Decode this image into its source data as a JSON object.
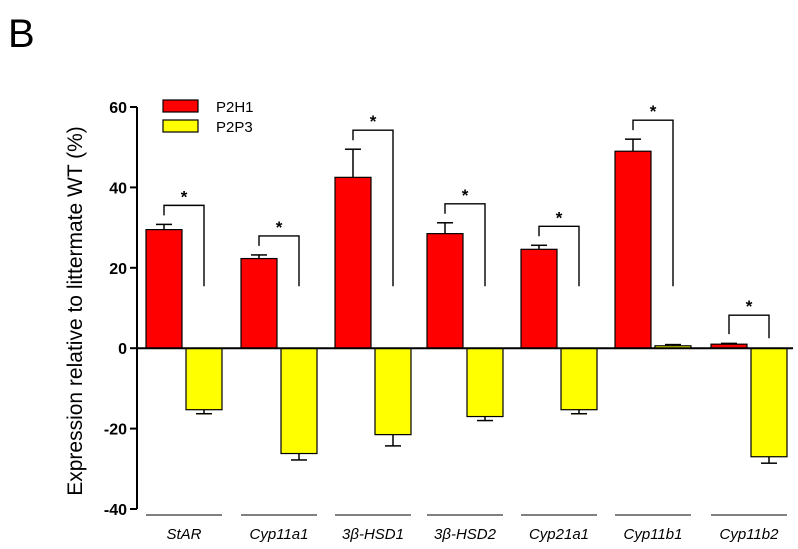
{
  "panel_letter": "B",
  "colors": {
    "P2H1": "#ff0000",
    "P2P3": "#ffff00",
    "axis": "#000000"
  },
  "chart_data": {
    "type": "bar",
    "ylabel": "Expression relative to littermate WT (%)",
    "ylim": [
      -40,
      60
    ],
    "yticks": [
      -40,
      -20,
      0,
      20,
      40,
      60
    ],
    "categories": [
      "StAR",
      "Cyp11a1",
      "3β-HSD1",
      "3β-HSD2",
      "Cyp21a1",
      "Cyp11b1",
      "Cyp11b2"
    ],
    "series": [
      {
        "name": "P2H1",
        "values": [
          29.5,
          22.3,
          42.5,
          28.5,
          24.6,
          49,
          1
        ],
        "errors": [
          1.3,
          0.9,
          7,
          2.7,
          1,
          3,
          0.2
        ]
      },
      {
        "name": "P2P3",
        "values": [
          -15.3,
          -26.2,
          -21.5,
          -17,
          -15.3,
          0.6,
          -27
        ],
        "errors": [
          1,
          1.6,
          2.8,
          1,
          1,
          0.3,
          1.6
        ]
      }
    ],
    "significance": [
      "*",
      "*",
      "*",
      "*",
      "*",
      "*",
      "*"
    ],
    "legend_position": "top-left",
    "grid": false
  }
}
